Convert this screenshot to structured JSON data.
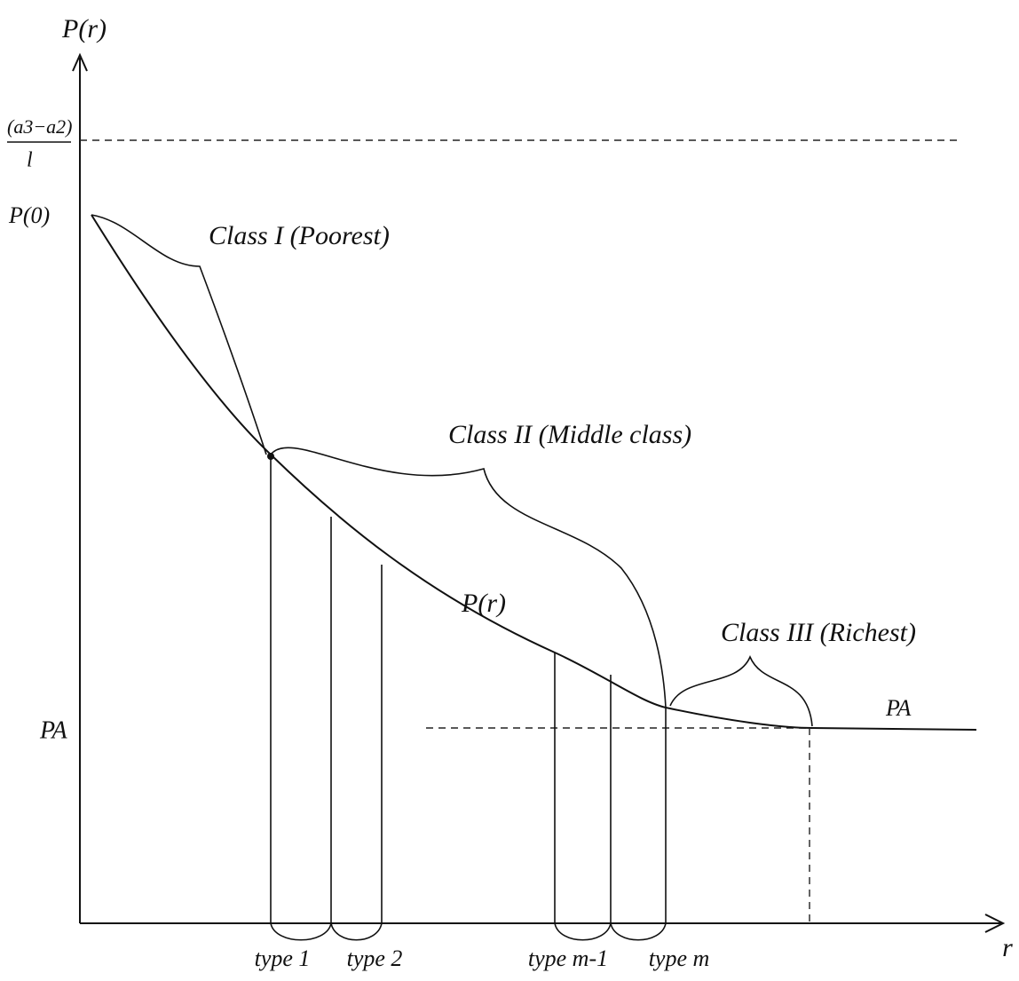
{
  "axes": {
    "y_label": "P(r)",
    "x_label": "r"
  },
  "levels": {
    "upper_numerator": "(a3−a2)",
    "upper_denominator": "l",
    "p0": "P(0)",
    "pa_left": "PA",
    "pa_right": "PA"
  },
  "classes": [
    "Class I (Poorest)",
    "Class II (Middle class)",
    "Class III (Richest)"
  ],
  "curve_label": "P(r)",
  "types": [
    "type 1",
    "type 2",
    "type m-1",
    "type m"
  ]
}
